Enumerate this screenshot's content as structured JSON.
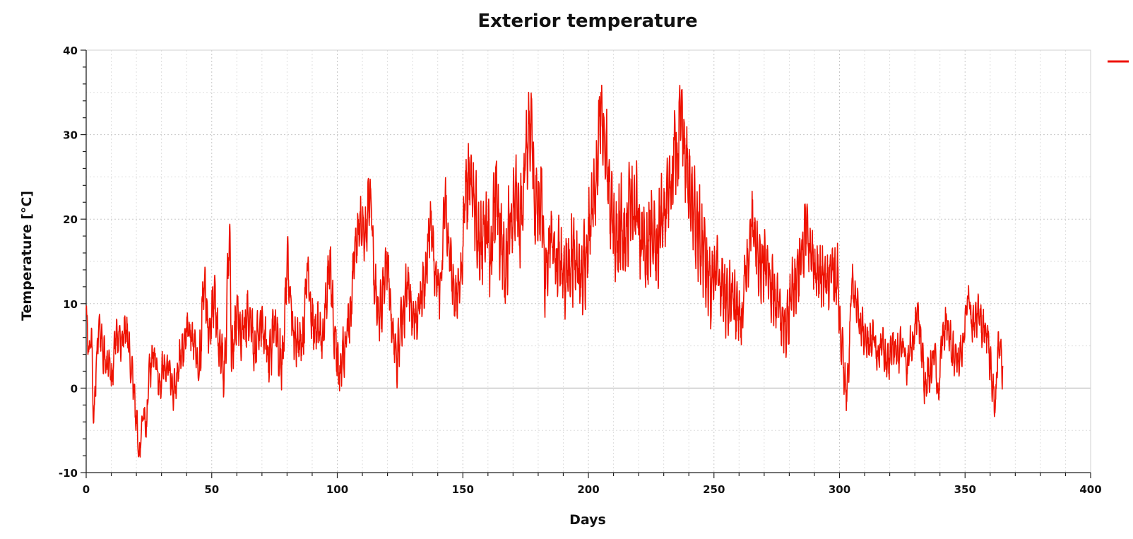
{
  "chart_data": {
    "type": "line",
    "title": "Exterior temperature",
    "xlabel": "Days",
    "ylabel": "Temperature [°C]",
    "xlim": [
      0,
      400
    ],
    "ylim": [
      -10,
      40
    ],
    "x_ticks": [
      0,
      50,
      100,
      150,
      200,
      250,
      300,
      350,
      400
    ],
    "y_ticks": [
      -10,
      0,
      10,
      20,
      30,
      40
    ],
    "grid": true,
    "legend_position": "top-right",
    "series": [
      {
        "color": "#ee1100",
        "x_start": 0,
        "x_end": 365,
        "anchors": [
          [
            0,
            8.5
          ],
          [
            1,
            4
          ],
          [
            2,
            6.5
          ],
          [
            3,
            -3
          ],
          [
            4,
            2
          ],
          [
            5,
            7
          ],
          [
            7,
            4
          ],
          [
            9,
            3
          ],
          [
            10,
            0.5
          ],
          [
            12,
            6.5
          ],
          [
            14,
            5.5
          ],
          [
            16,
            7
          ],
          [
            18,
            3
          ],
          [
            20,
            -4
          ],
          [
            21,
            -8.3
          ],
          [
            23,
            -3.5
          ],
          [
            24,
            -5
          ],
          [
            25,
            2
          ],
          [
            27,
            4
          ],
          [
            29,
            1
          ],
          [
            32,
            3
          ],
          [
            35,
            0
          ],
          [
            38,
            4
          ],
          [
            40,
            7
          ],
          [
            42,
            6
          ],
          [
            45,
            3
          ],
          [
            47,
            12
          ],
          [
            49,
            7
          ],
          [
            51,
            10
          ],
          [
            53,
            5
          ],
          [
            55,
            2
          ],
          [
            57,
            17
          ],
          [
            58,
            4
          ],
          [
            60,
            8
          ],
          [
            63,
            7
          ],
          [
            65,
            9
          ],
          [
            67,
            5
          ],
          [
            70,
            8
          ],
          [
            73,
            4
          ],
          [
            75,
            7
          ],
          [
            78,
            3
          ],
          [
            80,
            14
          ],
          [
            83,
            6
          ],
          [
            86,
            5
          ],
          [
            88,
            13
          ],
          [
            91,
            7
          ],
          [
            94,
            6
          ],
          [
            97,
            14
          ],
          [
            99,
            6
          ],
          [
            101,
            2
          ],
          [
            103,
            5
          ],
          [
            105,
            8
          ],
          [
            107,
            16
          ],
          [
            109,
            20
          ],
          [
            111,
            18
          ],
          [
            113,
            23
          ],
          [
            115,
            12
          ],
          [
            117,
            9
          ],
          [
            120,
            15
          ],
          [
            122,
            7
          ],
          [
            124,
            4
          ],
          [
            126,
            9
          ],
          [
            128,
            12
          ],
          [
            130,
            8
          ],
          [
            133,
            10
          ],
          [
            135,
            13
          ],
          [
            137,
            20
          ],
          [
            139,
            14
          ],
          [
            141,
            12
          ],
          [
            143,
            22
          ],
          [
            145,
            15
          ],
          [
            147,
            10
          ],
          [
            149,
            13
          ],
          [
            151,
            22
          ],
          [
            153,
            26
          ],
          [
            155,
            21
          ],
          [
            157,
            17
          ],
          [
            159,
            19
          ],
          [
            161,
            16
          ],
          [
            163,
            22
          ],
          [
            165,
            18
          ],
          [
            167,
            14
          ],
          [
            169,
            20
          ],
          [
            171,
            23
          ],
          [
            173,
            20
          ],
          [
            175,
            27
          ],
          [
            177,
            32
          ],
          [
            179,
            20
          ],
          [
            181,
            22
          ],
          [
            183,
            14
          ],
          [
            185,
            17
          ],
          [
            188,
            15
          ],
          [
            191,
            14
          ],
          [
            194,
            16
          ],
          [
            197,
            13
          ],
          [
            199,
            16
          ],
          [
            201,
            20
          ],
          [
            203,
            24
          ],
          [
            205,
            32
          ],
          [
            207,
            28
          ],
          [
            209,
            21
          ],
          [
            211,
            17
          ],
          [
            213,
            20
          ],
          [
            215,
            18
          ],
          [
            217,
            23
          ],
          [
            219,
            21
          ],
          [
            221,
            18
          ],
          [
            223,
            16
          ],
          [
            225,
            19
          ],
          [
            227,
            15
          ],
          [
            229,
            20
          ],
          [
            231,
            22
          ],
          [
            233,
            25
          ],
          [
            235,
            28
          ],
          [
            237,
            32
          ],
          [
            239,
            26
          ],
          [
            241,
            22
          ],
          [
            243,
            20
          ],
          [
            245,
            17
          ],
          [
            247,
            14
          ],
          [
            249,
            13
          ],
          [
            251,
            15
          ],
          [
            253,
            12
          ],
          [
            255,
            10
          ],
          [
            257,
            11
          ],
          [
            259,
            9
          ],
          [
            261,
            8
          ],
          [
            263,
            14
          ],
          [
            265,
            20
          ],
          [
            267,
            16
          ],
          [
            269,
            15
          ],
          [
            271,
            14
          ],
          [
            273,
            12
          ],
          [
            275,
            10
          ],
          [
            277,
            8
          ],
          [
            279,
            7
          ],
          [
            281,
            11
          ],
          [
            283,
            13
          ],
          [
            285,
            16
          ],
          [
            287,
            20
          ],
          [
            289,
            15
          ],
          [
            291,
            14
          ],
          [
            293,
            13
          ],
          [
            295,
            12
          ],
          [
            297,
            14
          ],
          [
            299,
            13
          ],
          [
            301,
            5
          ],
          [
            302,
            1
          ],
          [
            303,
            -1
          ],
          [
            305,
            12
          ],
          [
            307,
            10
          ],
          [
            309,
            7
          ],
          [
            311,
            5
          ],
          [
            313,
            6
          ],
          [
            315,
            4
          ],
          [
            317,
            5
          ],
          [
            319,
            3
          ],
          [
            321,
            5
          ],
          [
            323,
            4
          ],
          [
            325,
            5
          ],
          [
            327,
            3
          ],
          [
            329,
            6
          ],
          [
            331,
            9
          ],
          [
            333,
            4
          ],
          [
            334,
            0
          ],
          [
            336,
            2
          ],
          [
            338,
            4
          ],
          [
            339,
            -1
          ],
          [
            341,
            6
          ],
          [
            343,
            8
          ],
          [
            345,
            4
          ],
          [
            347,
            3
          ],
          [
            349,
            5
          ],
          [
            351,
            11
          ],
          [
            353,
            7
          ],
          [
            355,
            9
          ],
          [
            357,
            7
          ],
          [
            359,
            6
          ],
          [
            361,
            0
          ],
          [
            362,
            -2.5
          ],
          [
            363,
            4
          ],
          [
            364,
            6
          ],
          [
            365,
            2
          ]
        ]
      }
    ]
  }
}
